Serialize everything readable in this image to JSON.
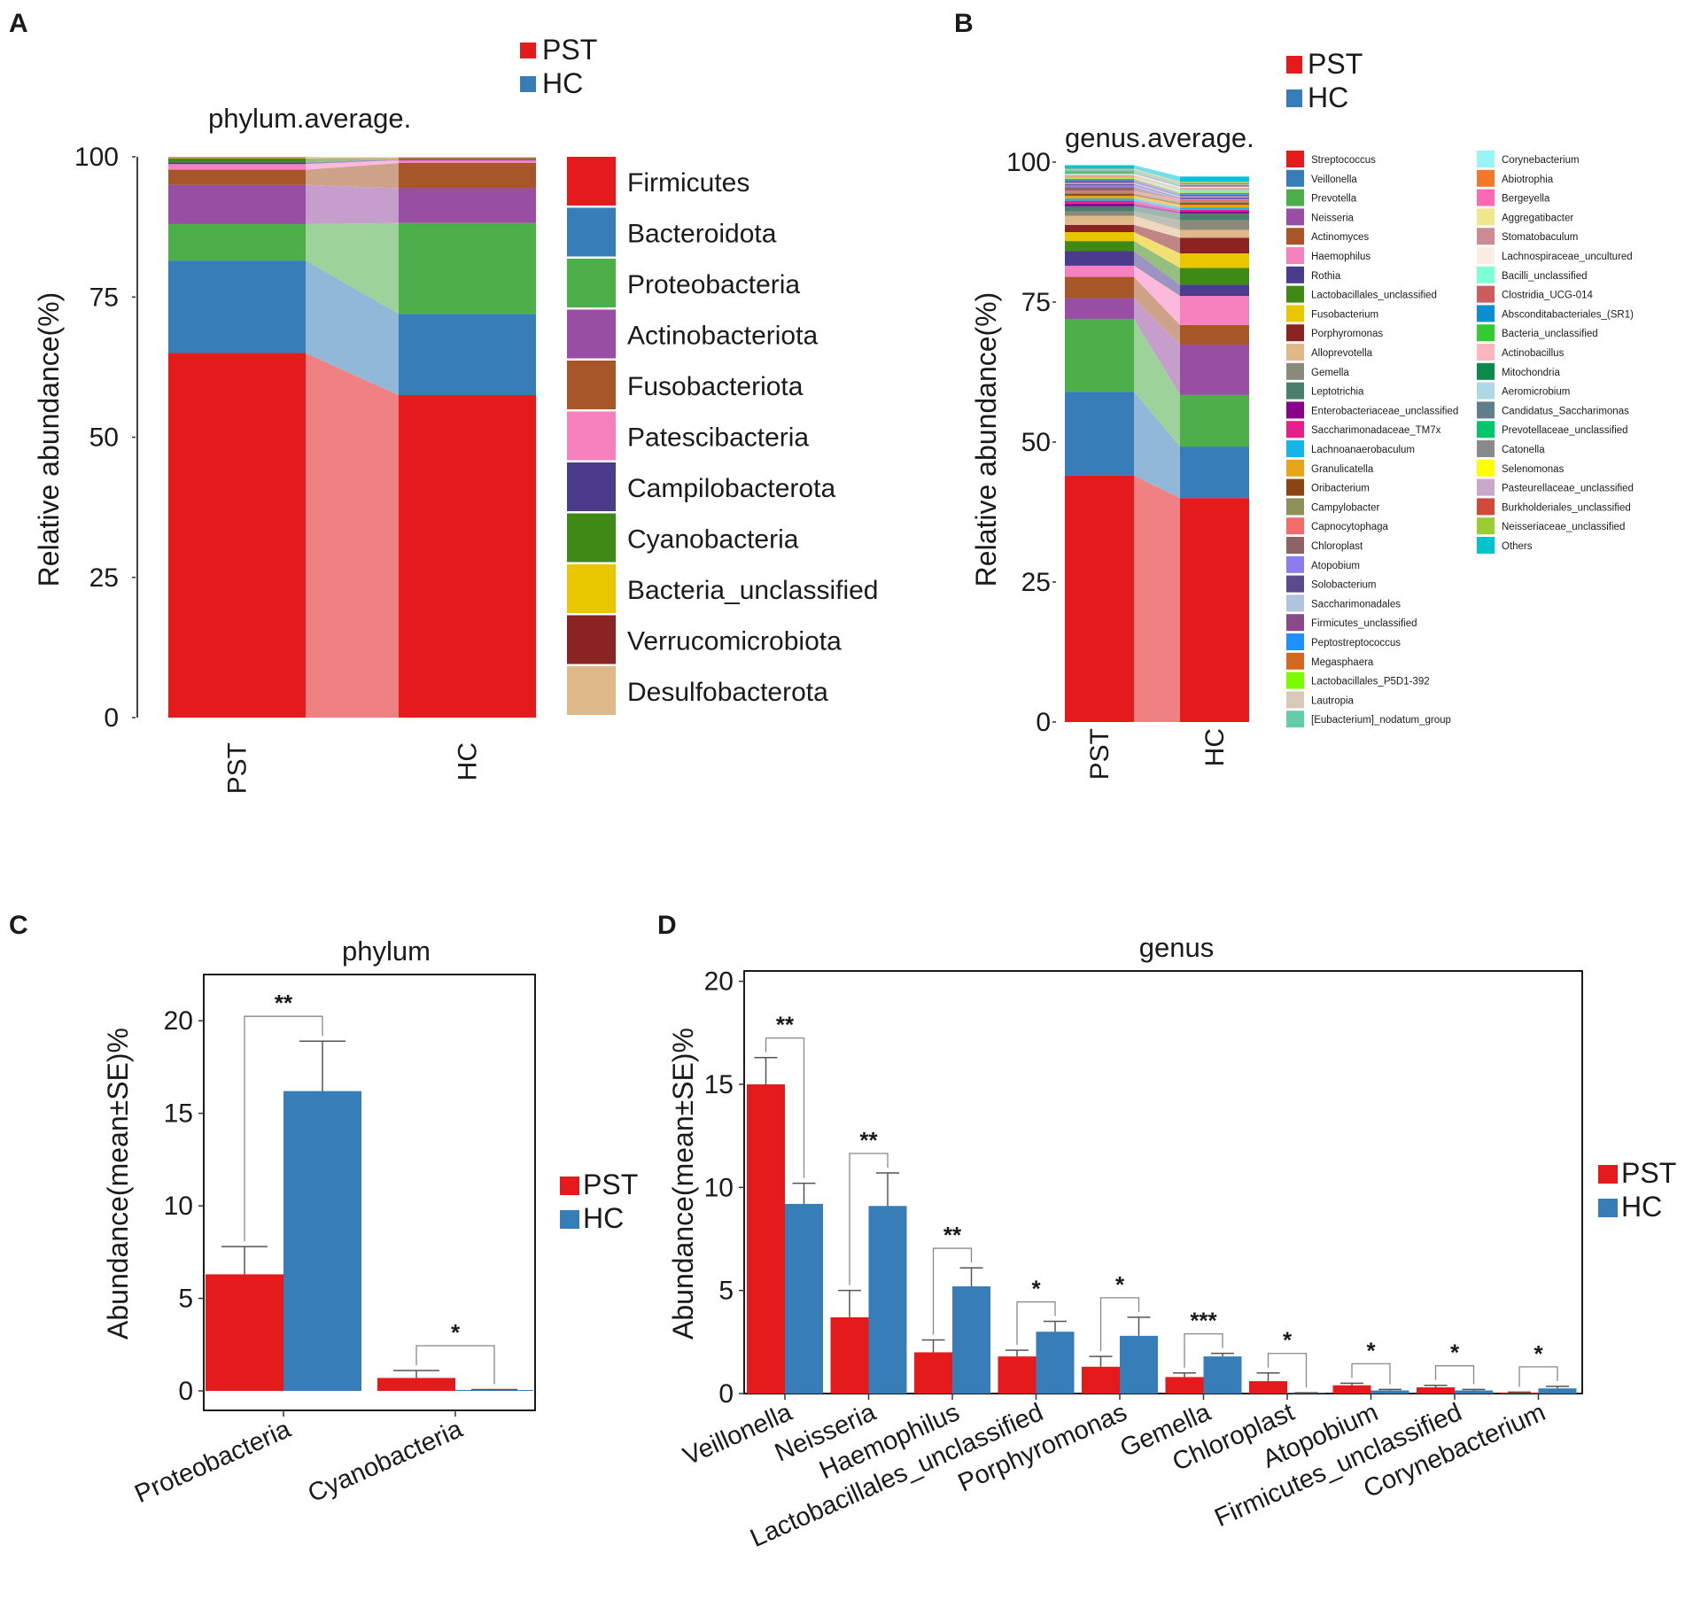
{
  "colors": {
    "PST": "#e41a1c",
    "HC": "#377eb8"
  },
  "panels": {
    "A": {
      "label": "A",
      "title": "phylum.average.",
      "ylabel": "Relative abundance(%)"
    },
    "B": {
      "label": "B",
      "title": "genus.average.",
      "ylabel": "Relative abundance(%)"
    },
    "C": {
      "label": "C",
      "title": "phylum",
      "ylabel": "Abundance(mean±SE)%"
    },
    "D": {
      "label": "D",
      "title": "genus",
      "ylabel": "Abundance(mean±SE)%"
    }
  },
  "group_legend": [
    {
      "key": "PST",
      "label": "PST",
      "color": "#e41a1c"
    },
    {
      "key": "HC",
      "label": "HC",
      "color": "#377eb8"
    }
  ],
  "chart_data": [
    {
      "id": "A",
      "type": "area",
      "subtype": "stacked-bar-with-flow",
      "title": "phylum.average.",
      "xlabel": "",
      "ylabel": "Relative abundance(%)",
      "ylim": [
        0,
        100
      ],
      "yticks": [
        0,
        25,
        50,
        75,
        100
      ],
      "categories": [
        "PST",
        "HC"
      ],
      "series": [
        {
          "name": "Firmicutes",
          "color": "#e41a1c",
          "values": [
            65.0,
            57.5
          ]
        },
        {
          "name": "Bacteroidota",
          "color": "#377eb8",
          "values": [
            16.5,
            14.5
          ]
        },
        {
          "name": "Proteobacteria",
          "color": "#4daf4a",
          "values": [
            6.5,
            16.2
          ]
        },
        {
          "name": "Actinobacteriota",
          "color": "#984ea3",
          "values": [
            7.0,
            6.2
          ]
        },
        {
          "name": "Fusobacteriota",
          "color": "#a65628",
          "values": [
            2.7,
            4.5
          ]
        },
        {
          "name": "Patescibacteria",
          "color": "#f781bf",
          "values": [
            1.0,
            0.5
          ]
        },
        {
          "name": "Campilobacterota",
          "color": "#4b3b8c",
          "values": [
            0.3,
            0.2
          ]
        },
        {
          "name": "Cyanobacteria",
          "color": "#3f8a16",
          "values": [
            0.7,
            0.05
          ]
        },
        {
          "name": "Bacteria_unclassified",
          "color": "#e8c600",
          "values": [
            0.1,
            0.1
          ]
        },
        {
          "name": "Verrucomicrobiota",
          "color": "#8c2323",
          "values": [
            0.1,
            0.1
          ]
        },
        {
          "name": "Desulfobacterota",
          "color": "#e0b98a",
          "values": [
            0.1,
            0.1
          ]
        }
      ]
    },
    {
      "id": "B",
      "type": "area",
      "subtype": "stacked-bar-with-flow",
      "title": "genus.average.",
      "xlabel": "",
      "ylabel": "Relative abundance(%)",
      "ylim": [
        0,
        100
      ],
      "yticks": [
        0,
        25,
        50,
        75,
        100
      ],
      "categories": [
        "PST",
        "HC"
      ],
      "series": [
        {
          "name": "Streptococcus",
          "color": "#e41a1c",
          "values": [
            44.0,
            40.0
          ]
        },
        {
          "name": "Veillonella",
          "color": "#377eb8",
          "values": [
            15.0,
            9.2
          ]
        },
        {
          "name": "Prevotella",
          "color": "#4daf4a",
          "values": [
            13.0,
            9.2
          ]
        },
        {
          "name": "Neisseria",
          "color": "#984ea3",
          "values": [
            3.7,
            9.0
          ]
        },
        {
          "name": "Actinomyces",
          "color": "#a65628",
          "values": [
            3.8,
            3.5
          ]
        },
        {
          "name": "Haemophilus",
          "color": "#f781bf",
          "values": [
            2.0,
            5.2
          ]
        },
        {
          "name": "Rothia",
          "color": "#4b3b8c",
          "values": [
            2.6,
            2.0
          ]
        },
        {
          "name": "Lactobacillales_unclassified",
          "color": "#3f8a16",
          "values": [
            1.8,
            3.0
          ]
        },
        {
          "name": "Fusobacterium",
          "color": "#e8c600",
          "values": [
            1.6,
            2.6
          ]
        },
        {
          "name": "Porphyromonas",
          "color": "#8c2323",
          "values": [
            1.3,
            2.8
          ]
        },
        {
          "name": "Alloprevotella",
          "color": "#e0b98a",
          "values": [
            1.6,
            1.4
          ]
        },
        {
          "name": "Gemella",
          "color": "#8a8a7a",
          "values": [
            0.8,
            1.7
          ]
        },
        {
          "name": "Leptotrichia",
          "color": "#4a7f6e",
          "values": [
            0.9,
            1.2
          ]
        },
        {
          "name": "Enterobacteriaceae_unclassified",
          "color": "#8b008b",
          "values": [
            0.5,
            0.4
          ]
        },
        {
          "name": "Saccharimonadaceae_TM7x",
          "color": "#e6208a",
          "values": [
            0.5,
            0.3
          ]
        },
        {
          "name": "Lachnoanaerobaculum",
          "color": "#17b4e8",
          "values": [
            0.4,
            0.4
          ]
        },
        {
          "name": "Granulicatella",
          "color": "#e8a317",
          "values": [
            0.5,
            0.5
          ]
        },
        {
          "name": "Oribacterium",
          "color": "#8b4513",
          "values": [
            0.3,
            0.3
          ]
        },
        {
          "name": "Campylobacter",
          "color": "#8f8f5a",
          "values": [
            0.3,
            0.3
          ]
        },
        {
          "name": "Capnocytophaga",
          "color": "#f26c6c",
          "values": [
            0.3,
            0.3
          ]
        },
        {
          "name": "Chloroplast",
          "color": "#8c6464",
          "values": [
            0.6,
            0.02
          ]
        },
        {
          "name": "Atopobium",
          "color": "#8b7cf0",
          "values": [
            0.4,
            0.15
          ]
        },
        {
          "name": "Solobacterium",
          "color": "#5b4a8c",
          "values": [
            0.2,
            0.2
          ]
        },
        {
          "name": "Saccharimonadales",
          "color": "#b0c4de",
          "values": [
            0.2,
            0.2
          ]
        },
        {
          "name": "Firmicutes_unclassified",
          "color": "#8a4a8a",
          "values": [
            0.3,
            0.2
          ]
        },
        {
          "name": "Peptostreptococcus",
          "color": "#1e90ff",
          "values": [
            0.2,
            0.2
          ]
        },
        {
          "name": "Megasphaera",
          "color": "#d2691e",
          "values": [
            0.2,
            0.2
          ]
        },
        {
          "name": "Lactobacillales_P5D1-392",
          "color": "#7cfc00",
          "values": [
            0.1,
            0.1
          ]
        },
        {
          "name": "Lautropia",
          "color": "#d8c8b8",
          "values": [
            0.1,
            0.1
          ]
        },
        {
          "name": "[Eubacterium]_nodatum_group",
          "color": "#66cdaa",
          "values": [
            0.1,
            0.1
          ]
        },
        {
          "name": "Corynebacterium",
          "color": "#97f5f5",
          "values": [
            0.05,
            0.25
          ]
        },
        {
          "name": "Abiotrophia",
          "color": "#f07a2a",
          "values": [
            0.1,
            0.1
          ]
        },
        {
          "name": "Bergeyella",
          "color": "#ff69b4",
          "values": [
            0.1,
            0.1
          ]
        },
        {
          "name": "Aggregatibacter",
          "color": "#f0e68c",
          "values": [
            0.1,
            0.1
          ]
        },
        {
          "name": "Stomatobaculum",
          "color": "#cd8c95",
          "values": [
            0.1,
            0.1
          ]
        },
        {
          "name": "Lachnospiraceae_uncultured",
          "color": "#fbeee0",
          "values": [
            0.1,
            0.1
          ]
        },
        {
          "name": "Bacilli_unclassified",
          "color": "#7fffd4",
          "values": [
            0.1,
            0.1
          ]
        },
        {
          "name": "Clostridia_UCG-014",
          "color": "#cd5c5c",
          "values": [
            0.1,
            0.1
          ]
        },
        {
          "name": "Absconditabacteriales_(SR1)",
          "color": "#0a8fd1",
          "values": [
            0.1,
            0.1
          ]
        },
        {
          "name": "Bacteria_unclassified",
          "color": "#32cd32",
          "values": [
            0.1,
            0.1
          ]
        },
        {
          "name": "Actinobacillus",
          "color": "#ffb6c1",
          "values": [
            0.1,
            0.1
          ]
        },
        {
          "name": "Mitochondria",
          "color": "#0b8a4a",
          "values": [
            0.1,
            0.1
          ]
        },
        {
          "name": "Aeromicrobium",
          "color": "#add8e6",
          "values": [
            0.05,
            0.05
          ]
        },
        {
          "name": "Candidatus_Saccharimonas",
          "color": "#5f7f8a",
          "values": [
            0.05,
            0.05
          ]
        },
        {
          "name": "Prevotellaceae_unclassified",
          "color": "#00c76a",
          "values": [
            0.05,
            0.05
          ]
        },
        {
          "name": "Catonella",
          "color": "#8a8a8a",
          "values": [
            0.05,
            0.05
          ]
        },
        {
          "name": "Selenomonas",
          "color": "#ffff00",
          "values": [
            0.05,
            0.05
          ]
        },
        {
          "name": "Pasteurellaceae_unclassified",
          "color": "#c8a8c8",
          "values": [
            0.05,
            0.05
          ]
        },
        {
          "name": "Burkholderiales_unclassified",
          "color": "#d0493a",
          "values": [
            0.05,
            0.05
          ]
        },
        {
          "name": "Neisseriaceae_unclassified",
          "color": "#9acd32",
          "values": [
            0.05,
            0.05
          ]
        },
        {
          "name": "Others",
          "color": "#00c5cd",
          "values": [
            0.6,
            0.9
          ]
        }
      ]
    },
    {
      "id": "C",
      "type": "bar",
      "title": "phylum",
      "xlabel": "",
      "ylabel": "Abundance(mean±SE)%",
      "ylim": [
        0,
        22.5
      ],
      "yticks": [
        0,
        5,
        10,
        15,
        20
      ],
      "categories": [
        "Proteobacteria",
        "Cyanobacteria"
      ],
      "series": [
        {
          "name": "PST",
          "values": [
            6.3,
            0.7
          ],
          "errors": [
            1.5,
            0.4
          ]
        },
        {
          "name": "HC",
          "values": [
            16.2,
            0.05
          ],
          "errors": [
            2.7,
            0.02
          ]
        }
      ],
      "significance": [
        "**",
        "*"
      ]
    },
    {
      "id": "D",
      "type": "bar",
      "title": "genus",
      "xlabel": "",
      "ylabel": "Abundance(mean±SE)%",
      "ylim": [
        0,
        20.5
      ],
      "yticks": [
        0,
        5,
        10,
        15,
        20
      ],
      "categories": [
        "Veillonella",
        "Neisseria",
        "Haemophilus",
        "Lactobacillales_unclassified",
        "Porphyromonas",
        "Gemella",
        "Chloroplast",
        "Atopobium",
        "Firmicutes_unclassified",
        "Corynebacterium"
      ],
      "series": [
        {
          "name": "PST",
          "values": [
            15.0,
            3.7,
            2.0,
            1.8,
            1.3,
            0.8,
            0.6,
            0.4,
            0.3,
            0.05
          ],
          "errors": [
            1.3,
            1.3,
            0.6,
            0.3,
            0.5,
            0.2,
            0.4,
            0.1,
            0.1,
            0.02
          ]
        },
        {
          "name": "HC",
          "values": [
            9.2,
            9.1,
            5.2,
            3.0,
            2.8,
            1.8,
            0.02,
            0.15,
            0.15,
            0.25
          ],
          "errors": [
            1.0,
            1.6,
            0.9,
            0.5,
            0.9,
            0.15,
            0.02,
            0.05,
            0.05,
            0.1
          ]
        }
      ],
      "significance": [
        "**",
        "**",
        "**",
        "*",
        "*",
        "***",
        "*",
        "*",
        "*",
        "*"
      ]
    }
  ]
}
